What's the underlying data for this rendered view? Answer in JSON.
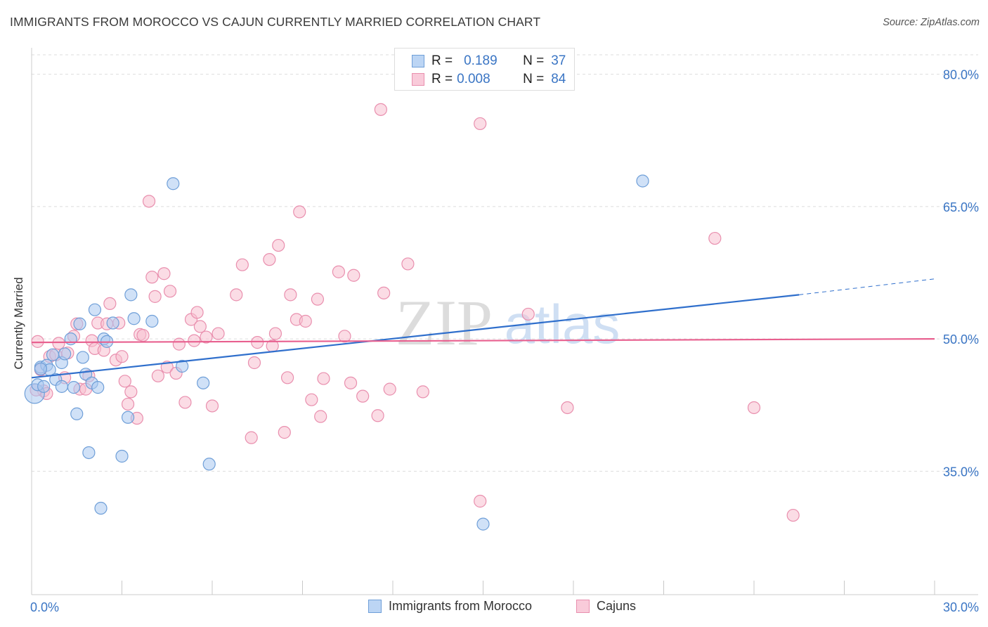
{
  "header": {
    "title": "IMMIGRANTS FROM MOROCCO VS CAJUN CURRENTLY MARRIED CORRELATION CHART",
    "source": "Source: ZipAtlas.com"
  },
  "legend": {
    "series1": {
      "r_label": "R =",
      "r_value": "0.189",
      "n_label": "N =",
      "n_value": "37"
    },
    "series2": {
      "r_label": "R =",
      "r_value": "0.008",
      "n_label": "N =",
      "n_value": "84"
    }
  },
  "watermark": {
    "zip": "ZIP",
    "atlas": "atlas"
  },
  "colors": {
    "blue_fill": "#a9c8f0",
    "blue_stroke": "#6f9fd8",
    "blue_line": "#2f6fcc",
    "pink_fill": "#f7bfd0",
    "pink_stroke": "#e98fae",
    "pink_line": "#e8608f",
    "axis_text": "#3a75c4",
    "grid": "#dddddd"
  },
  "chart_data": {
    "type": "scatter",
    "title": "IMMIGRANTS FROM MOROCCO VS CAJUN CURRENTLY MARRIED CORRELATION CHART",
    "xlabel": "",
    "ylabel": "Currently Married",
    "xlim": [
      0,
      30
    ],
    "ylim": [
      21,
      83
    ],
    "x_tick_labels": [
      "0.0%",
      "30.0%"
    ],
    "y_ticks": [
      35,
      50,
      65,
      80
    ],
    "y_tick_labels": [
      "35.0%",
      "50.0%",
      "65.0%",
      "80.0%"
    ],
    "grid": "horizontal dashed",
    "legend_position": "top-center",
    "series": [
      {
        "name": "Immigrants from Morocco",
        "color": "blue",
        "trend": {
          "x": [
            0,
            25.5
          ],
          "y": [
            45.6,
            55.0
          ],
          "dashed_extension_to_x": 30,
          "dashed_extension_y": 56.8
        },
        "points": [
          [
            0.1,
            43.8
          ],
          [
            0.2,
            44.8
          ],
          [
            0.3,
            46.8
          ],
          [
            0.4,
            44.6
          ],
          [
            0.5,
            47.0
          ],
          [
            0.6,
            46.5
          ],
          [
            0.7,
            48.2
          ],
          [
            0.8,
            45.4
          ],
          [
            1.0,
            47.3
          ],
          [
            1.0,
            44.6
          ],
          [
            1.1,
            48.3
          ],
          [
            1.3,
            50.0
          ],
          [
            1.4,
            44.5
          ],
          [
            1.5,
            41.5
          ],
          [
            1.6,
            51.7
          ],
          [
            1.7,
            47.9
          ],
          [
            1.8,
            46.0
          ],
          [
            1.9,
            37.1
          ],
          [
            2.0,
            45.0
          ],
          [
            2.1,
            53.3
          ],
          [
            2.2,
            44.5
          ],
          [
            2.3,
            30.8
          ],
          [
            2.4,
            50.0
          ],
          [
            2.5,
            49.7
          ],
          [
            2.7,
            51.8
          ],
          [
            3.0,
            36.7
          ],
          [
            3.2,
            41.1
          ],
          [
            3.3,
            55.0
          ],
          [
            3.4,
            52.3
          ],
          [
            4.0,
            52.0
          ],
          [
            4.7,
            67.6
          ],
          [
            5.0,
            46.9
          ],
          [
            5.7,
            45.0
          ],
          [
            5.9,
            35.8
          ],
          [
            15.0,
            29.0
          ],
          [
            20.3,
            67.9
          ],
          [
            0.3,
            46.6
          ]
        ]
      },
      {
        "name": "Cajuns",
        "color": "pink",
        "trend": {
          "x": [
            0,
            30
          ],
          "y": [
            49.6,
            50.0
          ]
        },
        "points": [
          [
            0.2,
            49.7
          ],
          [
            0.3,
            46.5
          ],
          [
            0.4,
            44.1
          ],
          [
            0.5,
            43.8
          ],
          [
            0.6,
            48.0
          ],
          [
            0.8,
            48.2
          ],
          [
            0.9,
            49.5
          ],
          [
            1.1,
            45.6
          ],
          [
            1.2,
            48.4
          ],
          [
            1.4,
            50.3
          ],
          [
            1.5,
            51.7
          ],
          [
            1.6,
            44.3
          ],
          [
            1.8,
            44.3
          ],
          [
            1.9,
            45.8
          ],
          [
            2.0,
            49.8
          ],
          [
            2.1,
            48.9
          ],
          [
            2.2,
            51.8
          ],
          [
            2.4,
            48.7
          ],
          [
            2.5,
            51.7
          ],
          [
            2.6,
            54.0
          ],
          [
            2.8,
            47.6
          ],
          [
            2.9,
            51.8
          ],
          [
            3.0,
            48.0
          ],
          [
            3.1,
            45.2
          ],
          [
            3.2,
            42.6
          ],
          [
            3.3,
            44.0
          ],
          [
            3.5,
            41.0
          ],
          [
            3.6,
            50.5
          ],
          [
            3.7,
            50.4
          ],
          [
            3.9,
            65.6
          ],
          [
            4.0,
            57.0
          ],
          [
            4.1,
            54.8
          ],
          [
            4.2,
            45.8
          ],
          [
            4.4,
            57.4
          ],
          [
            4.5,
            46.8
          ],
          [
            4.6,
            55.4
          ],
          [
            4.8,
            46.1
          ],
          [
            4.9,
            49.4
          ],
          [
            5.1,
            42.8
          ],
          [
            5.3,
            52.2
          ],
          [
            5.4,
            49.8
          ],
          [
            5.5,
            53.0
          ],
          [
            5.6,
            51.4
          ],
          [
            5.8,
            50.2
          ],
          [
            6.0,
            42.4
          ],
          [
            6.2,
            50.6
          ],
          [
            6.8,
            55.0
          ],
          [
            7.0,
            58.4
          ],
          [
            7.3,
            38.8
          ],
          [
            7.4,
            47.3
          ],
          [
            7.5,
            49.6
          ],
          [
            7.9,
            59.0
          ],
          [
            8.0,
            49.2
          ],
          [
            8.1,
            50.6
          ],
          [
            8.2,
            60.6
          ],
          [
            8.4,
            39.4
          ],
          [
            8.5,
            45.6
          ],
          [
            8.6,
            55.0
          ],
          [
            8.8,
            52.2
          ],
          [
            8.9,
            64.4
          ],
          [
            9.1,
            52.0
          ],
          [
            9.3,
            43.1
          ],
          [
            9.5,
            54.5
          ],
          [
            9.6,
            41.2
          ],
          [
            9.7,
            45.5
          ],
          [
            10.2,
            57.6
          ],
          [
            10.4,
            50.3
          ],
          [
            10.6,
            45.0
          ],
          [
            10.7,
            57.2
          ],
          [
            11.0,
            43.5
          ],
          [
            11.5,
            41.3
          ],
          [
            11.6,
            76.0
          ],
          [
            11.7,
            55.2
          ],
          [
            11.9,
            44.3
          ],
          [
            12.5,
            58.5
          ],
          [
            13.0,
            44.0
          ],
          [
            14.9,
            31.6
          ],
          [
            14.9,
            74.4
          ],
          [
            16.5,
            52.8
          ],
          [
            17.8,
            42.2
          ],
          [
            22.7,
            61.4
          ],
          [
            24.0,
            42.2
          ],
          [
            25.3,
            30.0
          ],
          [
            0.15,
            44.2
          ]
        ]
      }
    ]
  },
  "bottom_legend": {
    "item1": "Immigrants from Morocco",
    "item2": "Cajuns"
  }
}
